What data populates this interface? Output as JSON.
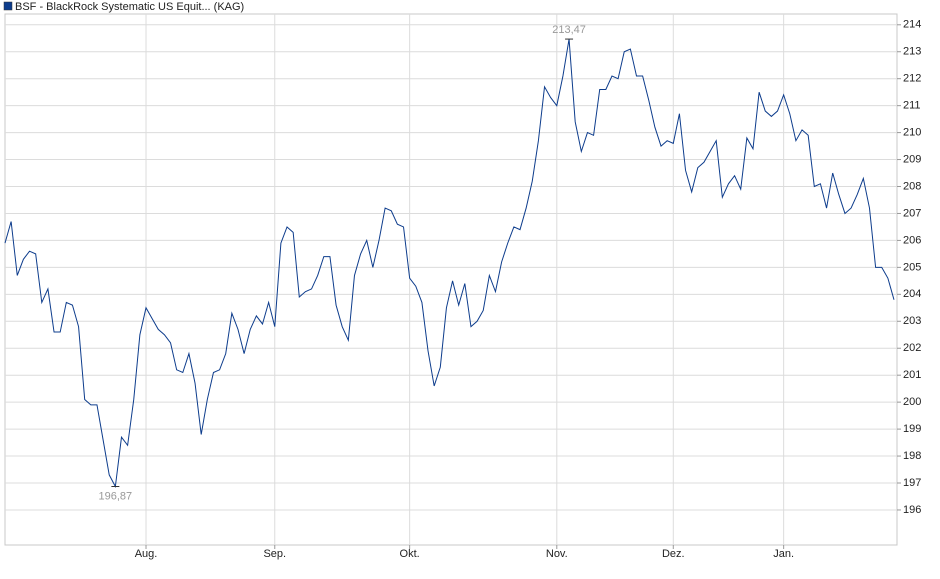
{
  "chart_data": {
    "type": "line",
    "legend": "top-left",
    "grid": true,
    "ylim": [
      194.7,
      214.4
    ],
    "yticks": [
      196,
      197,
      198,
      199,
      200,
      201,
      202,
      203,
      204,
      205,
      206,
      207,
      208,
      209,
      210,
      211,
      212,
      213,
      214
    ],
    "categories": [
      null,
      null,
      null,
      null,
      null,
      null,
      null,
      null,
      null,
      null,
      null,
      null,
      null,
      null,
      null,
      null,
      null,
      null,
      null,
      null,
      null,
      null,
      null,
      "Aug.",
      null,
      null,
      null,
      null,
      null,
      null,
      null,
      null,
      null,
      null,
      null,
      null,
      null,
      null,
      null,
      null,
      null,
      null,
      null,
      null,
      "Sep.",
      null,
      null,
      null,
      null,
      null,
      null,
      null,
      null,
      null,
      null,
      null,
      null,
      null,
      null,
      null,
      null,
      null,
      null,
      null,
      null,
      null,
      "Okt.",
      null,
      null,
      null,
      null,
      null,
      null,
      null,
      null,
      null,
      null,
      null,
      null,
      null,
      null,
      null,
      null,
      null,
      null,
      null,
      null,
      null,
      null,
      null,
      "Nov.",
      null,
      null,
      null,
      null,
      null,
      null,
      null,
      null,
      null,
      null,
      null,
      null,
      null,
      null,
      null,
      null,
      null,
      null,
      "Dez.",
      null,
      null,
      null,
      null,
      null,
      null,
      null,
      null,
      null,
      null,
      null,
      null,
      null,
      null,
      null,
      null,
      null,
      "Jan.",
      null,
      null,
      null,
      null,
      null,
      null,
      null,
      null,
      null,
      null,
      null,
      null,
      null,
      null,
      null,
      null,
      null,
      null
    ],
    "series": [
      {
        "name": "BSF - BlackRock Systematic US Equit... (KAG)",
        "color": "#0d3c8c",
        "values": [
          205.9,
          206.7,
          204.7,
          205.3,
          205.6,
          205.5,
          203.7,
          204.2,
          202.6,
          202.6,
          203.7,
          203.6,
          202.8,
          200.1,
          199.9,
          199.9,
          198.6,
          197.3,
          196.87,
          198.7,
          198.4,
          200.1,
          202.5,
          203.5,
          203.1,
          202.7,
          202.5,
          202.2,
          201.2,
          201.1,
          201.8,
          200.7,
          198.8,
          200.1,
          201.1,
          201.2,
          201.8,
          203.3,
          202.7,
          201.8,
          202.7,
          203.2,
          202.9,
          203.7,
          202.8,
          205.9,
          206.5,
          206.3,
          203.9,
          204.1,
          204.2,
          204.7,
          205.4,
          205.4,
          203.6,
          202.8,
          202.3,
          204.7,
          205.5,
          206.0,
          205.0,
          206.0,
          207.2,
          207.1,
          206.6,
          206.5,
          204.6,
          204.3,
          203.7,
          201.9,
          200.6,
          201.3,
          203.5,
          204.5,
          203.6,
          204.4,
          202.8,
          203.0,
          203.4,
          204.7,
          204.1,
          205.2,
          205.9,
          206.5,
          206.4,
          207.2,
          208.2,
          209.7,
          211.7,
          211.3,
          211.0,
          212.1,
          213.47,
          210.4,
          209.3,
          210.0,
          209.9,
          211.6,
          211.6,
          212.1,
          212.0,
          213.0,
          213.1,
          212.1,
          212.1,
          211.2,
          210.2,
          209.5,
          209.7,
          209.6,
          210.7,
          208.6,
          207.8,
          208.7,
          208.9,
          209.3,
          209.7,
          207.6,
          208.1,
          208.4,
          207.9,
          209.8,
          209.4,
          211.5,
          210.8,
          210.6,
          210.8,
          211.4,
          210.7,
          209.7,
          210.1,
          209.9,
          208.0,
          208.1,
          207.2,
          208.5,
          207.7,
          207.0,
          207.2,
          207.7,
          208.3,
          207.2,
          205.0,
          205.0,
          204.6,
          203.8
        ],
        "value_labels": [
          null,
          null,
          null,
          null,
          null,
          null,
          null,
          null,
          null,
          null,
          null,
          null,
          null,
          null,
          null,
          null,
          null,
          null,
          "196,87",
          null,
          null,
          null,
          null,
          null,
          null,
          null,
          null,
          null,
          null,
          null,
          null,
          null,
          null,
          null,
          null,
          null,
          null,
          null,
          null,
          null,
          null,
          null,
          null,
          null,
          null,
          null,
          null,
          null,
          null,
          null,
          null,
          null,
          null,
          null,
          null,
          null,
          null,
          null,
          null,
          null,
          null,
          null,
          null,
          null,
          null,
          null,
          null,
          null,
          null,
          null,
          null,
          null,
          null,
          null,
          null,
          null,
          null,
          null,
          null,
          null,
          null,
          null,
          null,
          null,
          null,
          null,
          null,
          null,
          null,
          null,
          null,
          null,
          "213,47",
          null,
          null,
          null,
          null,
          null,
          null,
          null,
          null,
          null,
          null,
          null,
          null,
          null,
          null,
          null,
          null,
          null,
          null,
          null,
          null,
          null,
          null,
          null,
          null,
          null,
          null,
          null,
          null,
          null,
          null,
          null,
          null,
          null,
          null,
          null,
          null,
          null,
          null,
          null,
          null,
          null,
          null,
          null,
          null,
          null,
          null,
          null,
          null,
          null,
          null,
          null,
          null,
          null
        ]
      }
    ]
  }
}
